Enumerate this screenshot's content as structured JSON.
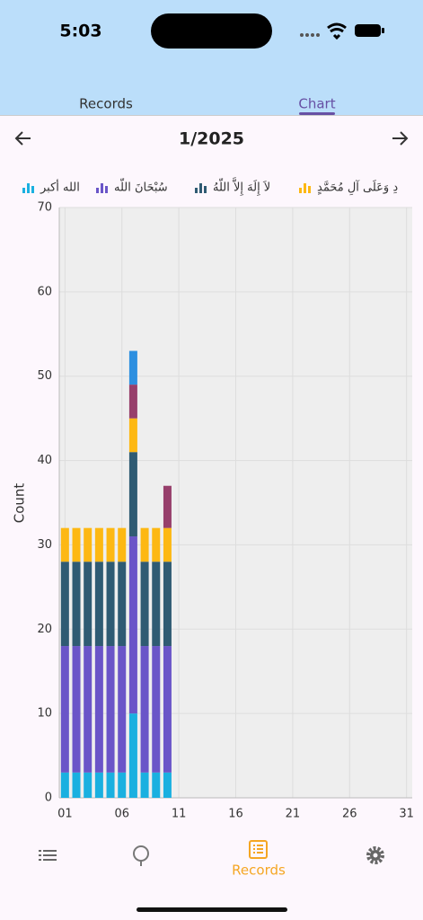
{
  "status_bar": {
    "time": "5:03"
  },
  "tabs": [
    "Records",
    "Chart"
  ],
  "month_nav": {
    "title": "1/2025"
  },
  "bottom_nav": {
    "label": "Records"
  },
  "chart_data": {
    "type": "bar",
    "stacked": true,
    "y_label": "Count",
    "x": [
      1,
      2,
      3,
      4,
      5,
      6,
      7,
      8,
      9,
      10
    ],
    "xlim": [
      0.5,
      31.5
    ],
    "xticks": [
      {
        "value": 1,
        "label": "01"
      },
      {
        "value": 6,
        "label": "06"
      },
      11,
      16,
      21,
      26,
      31
    ],
    "ylim": [
      0,
      70
    ],
    "yticks": [
      0,
      10,
      20,
      30,
      40,
      50,
      60,
      70
    ],
    "grid": true,
    "series": [
      {
        "name": "الله أكبر",
        "color": "#1ab0e0",
        "values": [
          3,
          3,
          3,
          3,
          3,
          3,
          10,
          3,
          3,
          3
        ]
      },
      {
        "name": "سُبْحَانَ اللّه",
        "color": "#6a55c8",
        "values": [
          15,
          15,
          15,
          15,
          15,
          15,
          21,
          15,
          15,
          15
        ]
      },
      {
        "name": "لاَ إِلَهَ إِلاَّ اللّهُ",
        "color": "#2f5b73",
        "values": [
          10,
          10,
          10,
          10,
          10,
          10,
          10,
          10,
          10,
          10
        ]
      },
      {
        "name": "دِ وَعَلَى آلِ مُحَمَّدٍ",
        "color": "#fdb813",
        "values": [
          4,
          4,
          4,
          4,
          4,
          4,
          4,
          4,
          4,
          4
        ]
      },
      {
        "color": "#973f6b",
        "values": [
          null,
          null,
          null,
          null,
          null,
          null,
          4,
          null,
          null,
          5
        ]
      },
      {
        "color": "#2d8fe0",
        "values": [
          null,
          null,
          null,
          null,
          null,
          null,
          4,
          null,
          null,
          null
        ]
      }
    ]
  }
}
